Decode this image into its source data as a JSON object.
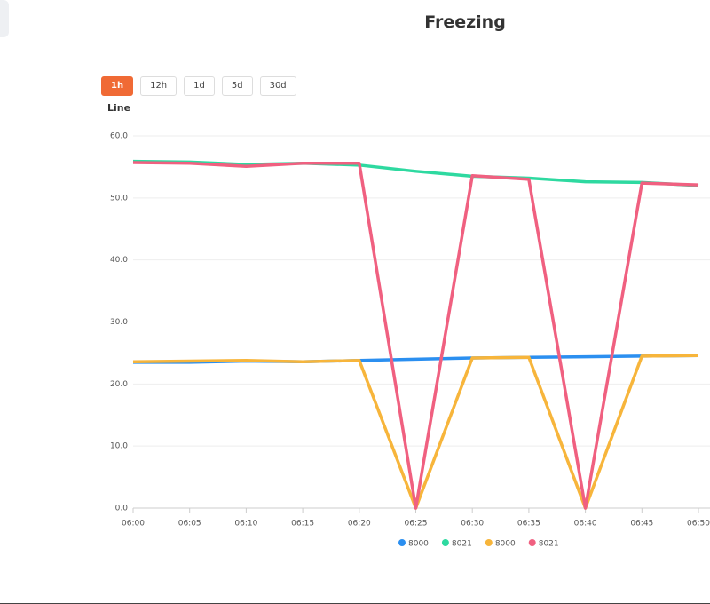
{
  "header": {
    "title": "Freezing"
  },
  "buttons": [
    {
      "label": "1h"
    },
    {
      "label": "12h"
    },
    {
      "label": "1d"
    },
    {
      "label": "5d"
    },
    {
      "label": "30d"
    }
  ],
  "chart_data": {
    "type": "line",
    "title": "Line",
    "categories": [
      "06:00",
      "06:05",
      "06:10",
      "06:15",
      "06:20",
      "06:25",
      "06:30",
      "06:35",
      "06:40",
      "06:45",
      "06:50"
    ],
    "series": [
      {
        "name": "8000",
        "color": "#2b8ff0",
        "values": [
          23.5,
          23.5,
          23.7,
          23.6,
          23.8,
          24.0,
          24.2,
          24.3,
          24.4,
          24.5,
          24.6
        ]
      },
      {
        "name": "8021",
        "color": "#2ed9a0",
        "values": [
          55.9,
          55.8,
          55.4,
          55.6,
          55.3,
          54.3,
          53.5,
          53.2,
          52.6,
          52.5,
          52.0
        ]
      },
      {
        "name": "8000",
        "color": "#f7b53b",
        "values": [
          23.6,
          23.7,
          23.8,
          23.6,
          23.8,
          0,
          24.2,
          24.3,
          0,
          24.5,
          24.6
        ]
      },
      {
        "name": "8021",
        "color": "#f06080",
        "values": [
          55.7,
          55.6,
          55.1,
          55.6,
          55.6,
          0,
          53.6,
          53.0,
          0,
          52.4,
          52.1
        ]
      }
    ],
    "ylim": [
      0,
      60
    ],
    "yticks": [
      {
        "value": 0,
        "label": "0.0"
      },
      {
        "value": 10,
        "label": "10.0"
      },
      {
        "value": 20,
        "label": "20.0"
      },
      {
        "value": 30,
        "label": "30.0"
      },
      {
        "value": 40,
        "label": "40.0"
      },
      {
        "value": 50,
        "label": "50.0"
      },
      {
        "value": 60,
        "label": "60.0"
      }
    ],
    "grid": true
  }
}
